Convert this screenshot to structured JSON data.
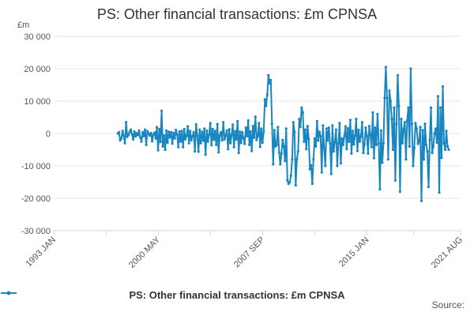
{
  "chart_data": {
    "type": "line",
    "title": "PS: Other financial transactions: £m CPNSA",
    "ylabel": "£m",
    "source": "Source:",
    "ylim": [
      -30000,
      30000
    ],
    "yticks": [
      30000,
      20000,
      10000,
      0,
      -10000,
      -20000,
      -30000
    ],
    "ytick_labels": [
      "30 000",
      "20 000",
      "10 000",
      "0",
      "-10 000",
      "-20 000",
      "-30 000"
    ],
    "xticks": [
      {
        "label": "1993 JAN",
        "t": 1993.0
      },
      {
        "label": "2000 MAY",
        "t": 2000.333
      },
      {
        "label": "2007 SEP",
        "t": 2007.667
      },
      {
        "label": "2015 JAN",
        "t": 2015.0
      },
      {
        "label": "2021 AUG",
        "t": 2021.583
      }
    ],
    "xlim": [
      1993.0,
      2021.583
    ],
    "grid": true,
    "legend": "bottom",
    "series": [
      {
        "name": "PS: Other financial transactions: £m CPNSA",
        "color": "#1a86c0",
        "start": 1997.5,
        "step_months": 1,
        "values": [
          0,
          400,
          -2100,
          -1500,
          800,
          -700,
          -3000,
          3500,
          -1000,
          -400,
          500,
          1200,
          -200,
          -1800,
          600,
          -900,
          100,
          -500,
          900,
          -1200,
          -2500,
          400,
          -800,
          1200,
          -3500,
          700,
          -100,
          -600,
          200,
          -2400,
          -400,
          300,
          -1500,
          2000,
          -5200,
          1400,
          -2600,
          7000,
          -4000,
          -600,
          -5000,
          900,
          -2800,
          500,
          -1200,
          400,
          -3100,
          200,
          -1500,
          1100,
          -300,
          -4200,
          600,
          -2500,
          800,
          -4200,
          1400,
          -1800,
          -700,
          2200,
          -3000,
          800,
          -2100,
          -800,
          400,
          -5500,
          2800,
          -700,
          -5600,
          1200,
          -3000,
          500,
          -2200,
          1500,
          -6500,
          900,
          -2500,
          -400,
          3200,
          -3600,
          1400,
          -1900,
          800,
          -3500,
          2900,
          -5800,
          -500,
          400,
          -2100,
          3500,
          -1800,
          -600,
          900,
          -4800,
          1300,
          -3000,
          -500,
          2700,
          -4200,
          700,
          -1800,
          3800,
          -6000,
          500,
          -2900,
          400,
          -1400,
          -3200,
          1800,
          -800,
          4000,
          -3500,
          600,
          -5400,
          2300,
          -1300,
          5200,
          -2000,
          -700,
          3200,
          -4100,
          1500,
          -2800,
          700,
          10500,
          8500,
          12000,
          18000,
          15500,
          16500,
          3000,
          -9500,
          1000,
          -4000,
          -3500,
          2000,
          -5800,
          -9500,
          -6200,
          -2000,
          -4000,
          -8500,
          1500,
          -14500,
          -15500,
          -15000,
          -13000,
          -8000,
          3500,
          500,
          -16000,
          -8000,
          -5500,
          4500,
          2000,
          8000,
          6500,
          -2500,
          1200,
          -4800,
          2300,
          -1700,
          -11000,
          -9800,
          -15500,
          -8000,
          -1500,
          -4000,
          3800,
          -2200,
          500,
          -800,
          -12000,
          2500,
          -4500,
          -10000,
          1500,
          -2200,
          1800,
          -3000,
          -12500,
          2500,
          -5500,
          -2800,
          1200,
          -10000,
          -3000,
          3200,
          -9200,
          -1500,
          -3500,
          -800,
          2200,
          -4800,
          1600,
          -2500,
          4200,
          -6200,
          800,
          -3400,
          -700,
          4500,
          -5400,
          1100,
          -2500,
          -800,
          3500,
          -6000,
          -3300,
          1800,
          -800,
          -6200,
          2300,
          -400,
          -4200,
          6500,
          -7600,
          1800,
          -3500,
          6000,
          -3000,
          -17200,
          900,
          -9000,
          -3000,
          11000,
          20500,
          11000,
          -8000,
          13200,
          10000,
          4500,
          -5000,
          8000,
          -14500,
          3000,
          18000,
          8500,
          -18000,
          4500,
          -3000,
          1200,
          3500,
          -8000,
          4000,
          8000,
          -4000,
          20000,
          3000,
          -10000,
          -4500,
          3200,
          1500,
          -3200,
          -2500,
          2000,
          -20800,
          1000,
          -8000,
          3000,
          -3500,
          -5500,
          -16500,
          -2000,
          8000,
          -6000,
          -4000,
          0,
          1500,
          -2800,
          11500,
          -18200,
          8000,
          -7500,
          14500,
          -3000,
          -5000,
          800,
          -4000,
          -5000
        ]
      }
    ]
  }
}
